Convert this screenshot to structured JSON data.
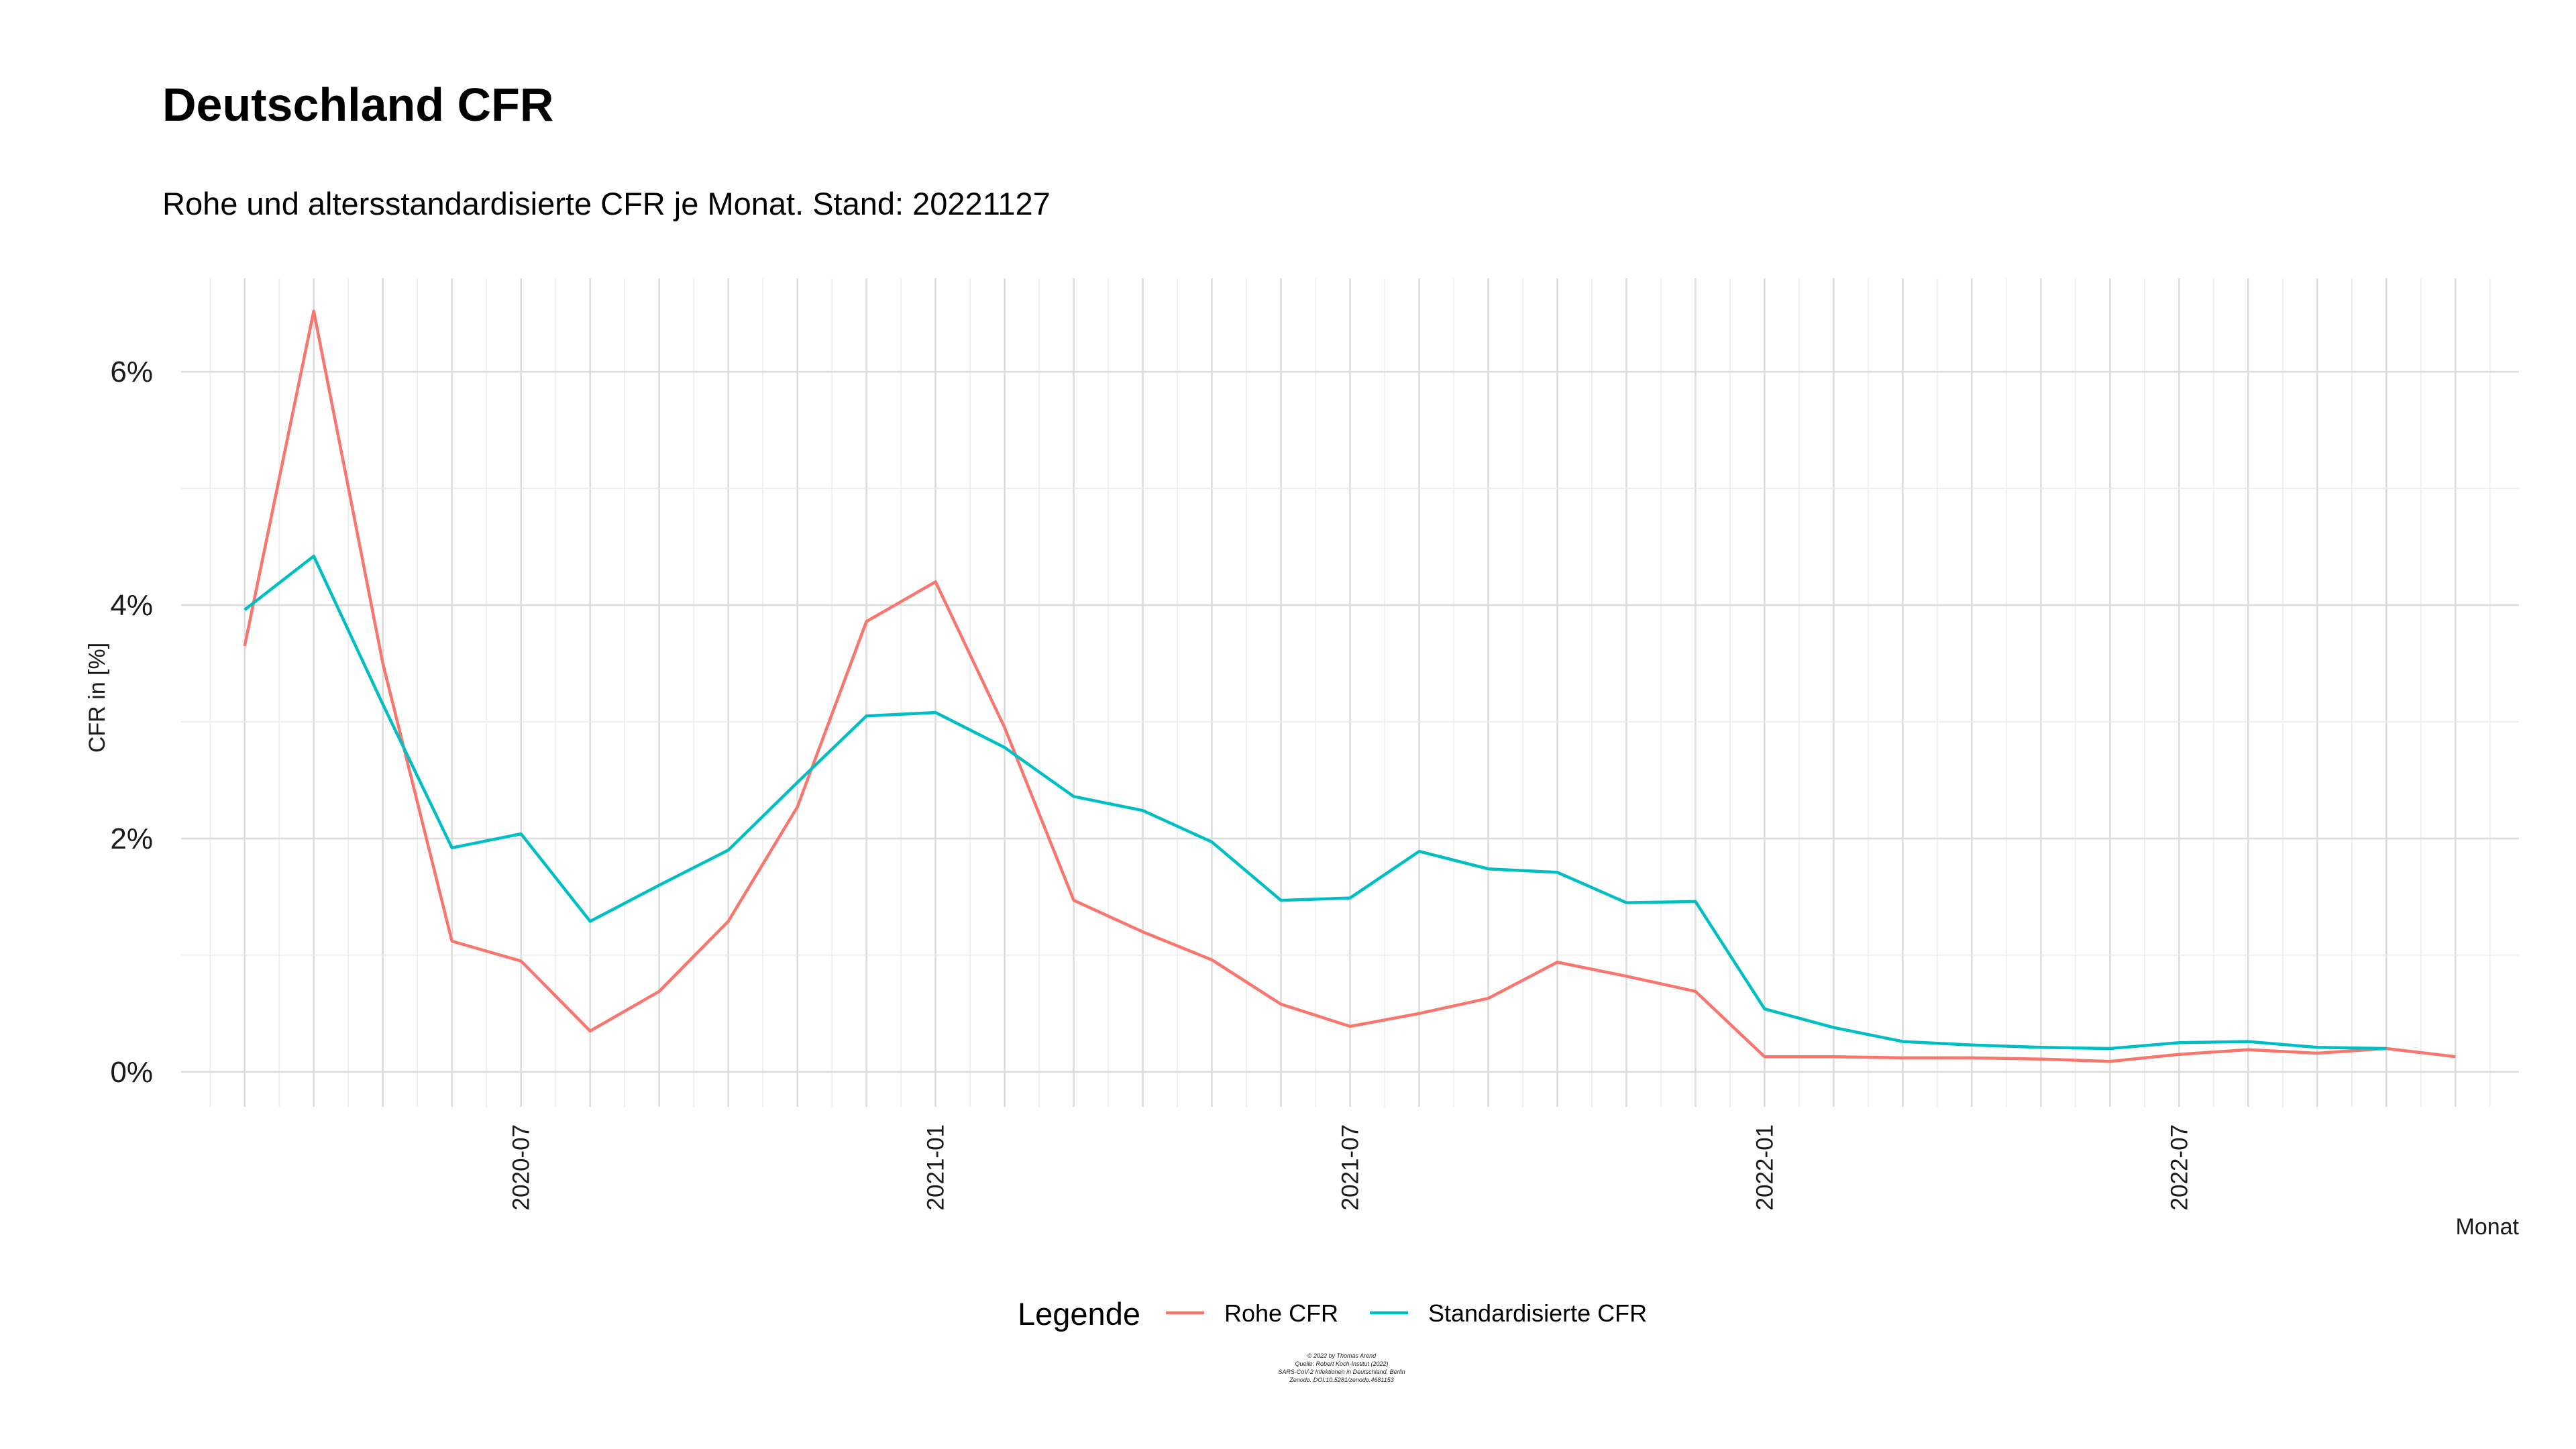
{
  "chart_data": {
    "type": "line",
    "title": "Deutschland CFR",
    "subtitle": "Rohe und altersstandardisierte CFR je Monat. Stand: 20221127",
    "xlabel": "Monat",
    "ylabel": "CFR in [%]",
    "x_tick_labels": [
      "2020-07",
      "2021-01",
      "2021-07",
      "2022-01",
      "2022-07"
    ],
    "x": [
      "2020-03",
      "2020-04",
      "2020-05",
      "2020-06",
      "2020-07",
      "2020-08",
      "2020-09",
      "2020-10",
      "2020-11",
      "2020-12",
      "2021-01",
      "2021-02",
      "2021-03",
      "2021-04",
      "2021-05",
      "2021-06",
      "2021-07",
      "2021-08",
      "2021-09",
      "2021-10",
      "2021-11",
      "2021-12",
      "2022-01",
      "2022-02",
      "2022-03",
      "2022-04",
      "2022-05",
      "2022-06",
      "2022-07",
      "2022-08",
      "2022-09",
      "2022-10",
      "2022-11"
    ],
    "y_ticks": [
      0,
      2,
      4,
      6
    ],
    "y_tick_labels": [
      "0%",
      "2%",
      "4%",
      "6%"
    ],
    "ylim": [
      -0.3,
      6.8
    ],
    "grid": true,
    "legend": {
      "title": "Legende",
      "position": "bottom"
    },
    "series": [
      {
        "name": "Rohe CFR",
        "color": "#F8766D",
        "values": [
          3.65,
          6.52,
          3.5,
          1.12,
          0.95,
          0.35,
          0.69,
          1.29,
          2.27,
          3.86,
          4.2,
          2.95,
          1.47,
          1.2,
          0.96,
          0.58,
          0.39,
          0.5,
          0.63,
          0.94,
          0.82,
          0.69,
          0.13,
          0.13,
          0.12,
          0.12,
          0.11,
          0.09,
          0.15,
          0.19,
          0.16,
          0.2,
          0.13
        ]
      },
      {
        "name": "Standardisierte CFR",
        "color": "#00BFC4",
        "values": [
          3.96,
          4.42,
          3.15,
          1.92,
          2.04,
          1.29,
          1.6,
          1.9,
          2.48,
          3.05,
          3.08,
          2.78,
          2.36,
          2.24,
          1.97,
          1.47,
          1.49,
          1.89,
          1.74,
          1.71,
          1.45,
          1.46,
          0.54,
          0.38,
          0.26,
          0.23,
          0.21,
          0.2,
          0.25,
          0.26,
          0.21,
          0.2,
          null
        ]
      }
    ]
  },
  "caption_lines": [
    "© 2022 by Thomas Arend",
    "Quelle: Robert Koch-Institut (2022)",
    "SARS-CoV-2 Infektionen in Deutschland, Berlin",
    "Zenodo. DOI:10.5281/zenodo.4681153"
  ]
}
